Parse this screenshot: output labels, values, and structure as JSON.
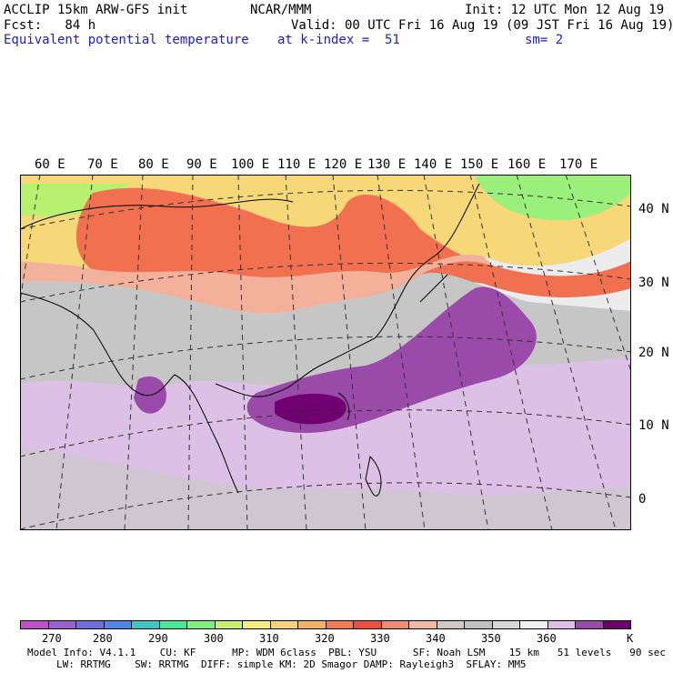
{
  "header": {
    "model": "ACCLIP 15km ARW-GFS init",
    "org": "NCAR/MMM",
    "init": "Init: 12 UTC Mon 12 Aug 19",
    "fcst": "Fcst:   84 h",
    "valid": "Valid: 00 UTC Fri 16 Aug 19 (09 JST Fri 16 Aug 19)",
    "field": "Equivalent potential temperature",
    "level": "at k-index =  51",
    "smooth": "sm= 2"
  },
  "map": {
    "lon_labels": [
      "60 E",
      "70 E",
      "80 E",
      "90 E",
      "100 E",
      "110 E",
      "120 E",
      "130 E",
      "140 E",
      "150 E",
      "160 E",
      "170 E"
    ],
    "lat_labels": [
      "40 N",
      "30 N",
      "20 N",
      "10 N",
      "0"
    ]
  },
  "colorbar": {
    "unit": "K",
    "labels": [
      "270",
      "280",
      "290",
      "300",
      "310",
      "320",
      "330",
      "340",
      "350",
      "360"
    ],
    "colors": [
      "#c04fc8",
      "#9a60d0",
      "#6e6ee0",
      "#4f86e8",
      "#3ec7c7",
      "#46e89a",
      "#7ef07e",
      "#c8f06a",
      "#f5f07a",
      "#f7d27a",
      "#f6b25e",
      "#f47a50",
      "#f04e3e",
      "#f08a72",
      "#f2b8a4",
      "#d0c8c4",
      "#c0c0c0",
      "#d8d8d8",
      "#efefef",
      "#dcc0e8",
      "#9a4aa8",
      "#700070"
    ]
  },
  "footer": {
    "line1": "Model Info: V4.1.1    CU: KF      MP: WDM 6class  PBL: YSU      SF: Noah LSM    15 km   51 levels   90 sec",
    "line2": "LW: RRTMG    SW: RRTMG  DIFF: simple KM: 2D Smagor DAMP: Rayleigh3  SFLAY: MM5"
  }
}
